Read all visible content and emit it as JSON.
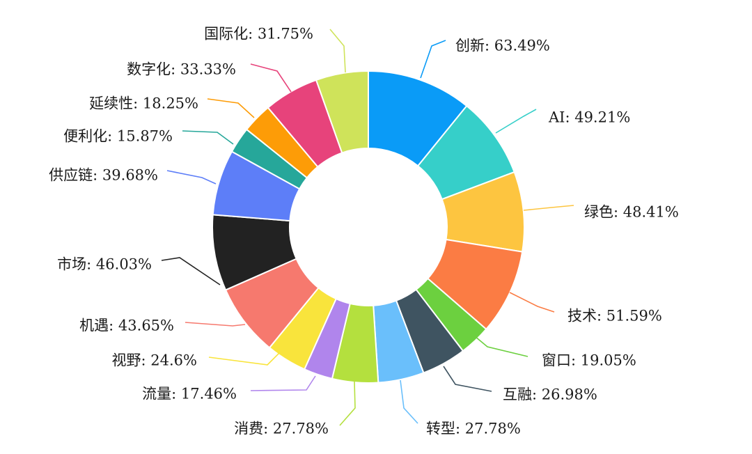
{
  "chart_data": {
    "type": "pie",
    "donut": true,
    "title": "",
    "unit": "%",
    "categories": [
      "创新",
      "AI",
      "绿色",
      "技术",
      "窗口",
      "互融",
      "转型",
      "消费",
      "流量",
      "视野",
      "机遇",
      "市场",
      "供应链",
      "便利化",
      "延续性",
      "数字化",
      "国际化"
    ],
    "values": [
      63.49,
      49.21,
      48.41,
      51.59,
      19.05,
      26.98,
      27.78,
      27.78,
      17.46,
      24.6,
      43.65,
      46.03,
      39.68,
      15.87,
      18.25,
      33.33,
      31.75
    ],
    "labels": [
      "创新: 63.49%",
      "AI: 49.21%",
      "绿色: 48.41%",
      "技术: 51.59%",
      "窗口: 19.05%",
      "互融: 26.98%",
      "转型: 27.78%",
      "消费: 27.78%",
      "流量: 17.46%",
      "视野: 24.6%",
      "机遇: 43.65%",
      "市场: 46.03%",
      "供应链: 39.68%",
      "便利化: 15.87%",
      "延续性: 18.25%",
      "数字化: 33.33%",
      "国际化: 31.75%"
    ],
    "colors": [
      "#0a9bf7",
      "#36cfc9",
      "#fdc540",
      "#fb7c44",
      "#6cd03f",
      "#3f5461",
      "#6abffb",
      "#b4e03e",
      "#b085ec",
      "#f9e43c",
      "#f6796e",
      "#222222",
      "#5d7ef8",
      "#26a79a",
      "#fd9c07",
      "#e7437b",
      "#cfe35a"
    ],
    "legend": "none",
    "start_angle": "12 o'clock",
    "direction": "clockwise"
  }
}
